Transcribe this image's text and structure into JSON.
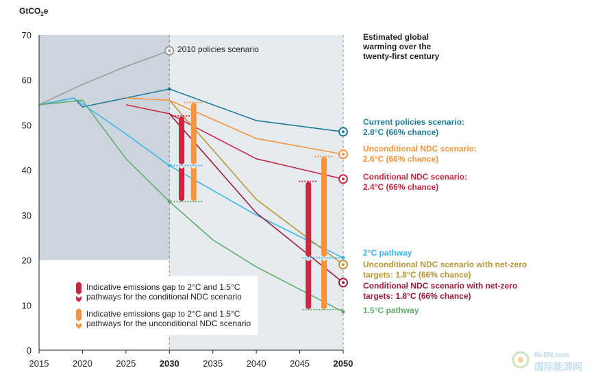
{
  "chart_data": {
    "type": "line",
    "ylabel": "GtCO₂e",
    "ylim": [
      0,
      70
    ],
    "yticks": [
      0,
      10,
      20,
      30,
      40,
      50,
      60,
      70
    ],
    "xticks": [
      {
        "value": 2015,
        "label": "2015",
        "bold": false
      },
      {
        "value": 2020,
        "label": "2020",
        "bold": false
      },
      {
        "value": 2025,
        "label": "2025",
        "bold": false
      },
      {
        "value": 2030,
        "label": "2030",
        "bold": true
      },
      {
        "value": 2035,
        "label": "2035",
        "bold": false
      },
      {
        "value": 2040,
        "label": "2040",
        "bold": false
      },
      {
        "value": 2045,
        "label": "2045",
        "bold": false
      },
      {
        "value": 2050,
        "label": "2050",
        "bold": true
      }
    ],
    "xlim": [
      2015,
      2050
    ],
    "side_title": [
      "Estimated global",
      "warming over the",
      "twenty-first century"
    ],
    "series": [
      {
        "key": "policies2010",
        "color": "#a09999",
        "points": [
          [
            2015,
            54.5
          ],
          [
            2020,
            59
          ],
          [
            2025,
            63
          ],
          [
            2030,
            66.5
          ]
        ],
        "end_marker": true
      },
      {
        "key": "current",
        "color": "#1e7b98",
        "points": [
          [
            2015,
            54.5
          ],
          [
            2019,
            56
          ],
          [
            2020,
            54
          ],
          [
            2025,
            56
          ],
          [
            2030,
            58
          ],
          [
            2040,
            51
          ],
          [
            2050,
            48.5
          ]
        ],
        "end_marker": true
      },
      {
        "key": "uncond_ndc",
        "color": "#f7943d",
        "points": [
          [
            2025,
            56
          ],
          [
            2030,
            55.5
          ],
          [
            2040,
            47
          ],
          [
            2050,
            43.5
          ]
        ],
        "end_marker": true
      },
      {
        "key": "cond_ndc",
        "color": "#c8273f",
        "points": [
          [
            2025,
            54.5
          ],
          [
            2030,
            52.5
          ],
          [
            2040,
            42.5
          ],
          [
            2050,
            38
          ]
        ],
        "end_marker": true
      },
      {
        "key": "two_deg",
        "color": "#39b7e9",
        "points": [
          [
            2015,
            54.5
          ],
          [
            2019,
            56
          ],
          [
            2025,
            48
          ],
          [
            2030,
            41
          ],
          [
            2040,
            30
          ],
          [
            2050,
            20.5
          ]
        ],
        "end_marker": false
      },
      {
        "key": "uncond_netzero",
        "color": "#b89537",
        "points": [
          [
            2030,
            55.5
          ],
          [
            2040,
            33.5
          ],
          [
            2050,
            19
          ]
        ],
        "end_marker": true
      },
      {
        "key": "cond_netzero",
        "color": "#9e1b3a",
        "points": [
          [
            2030,
            52.5
          ],
          [
            2040,
            30.5
          ],
          [
            2050,
            15
          ]
        ],
        "end_marker": true
      },
      {
        "key": "one_five",
        "color": "#62ab6d",
        "points": [
          [
            2015,
            54.5
          ],
          [
            2020,
            55.5
          ],
          [
            2025,
            42.5
          ],
          [
            2030,
            33
          ],
          [
            2035,
            24.5
          ],
          [
            2040,
            18.5
          ],
          [
            2050,
            8.5
          ]
        ],
        "end_marker": false
      }
    ],
    "labels": [
      {
        "key": "current",
        "color": "#1e7b98",
        "lines": [
          "Current policies scenario:",
          "2.8°C (66% chance)"
        ]
      },
      {
        "key": "uncond_ndc",
        "color": "#f7943d",
        "lines": [
          "Unconditional NDC scenario:",
          "2.6°C (66% chance)"
        ]
      },
      {
        "key": "cond_ndc",
        "color": "#c8273f",
        "lines": [
          "Conditional NDC scenario:",
          "2.4°C (66% chance)"
        ]
      },
      {
        "key": "two_deg",
        "color": "#39b7e9",
        "lines": [
          "2°C pathway"
        ]
      },
      {
        "key": "uncond_netzero",
        "color": "#b89537",
        "lines": [
          "Unconditional NDC scenario with net-zero",
          "targets: 1.8°C (66% chance)"
        ]
      },
      {
        "key": "cond_netzero",
        "color": "#9e1b3a",
        "lines": [
          "Conditional NDC scenario with net-zero",
          "targets: 1.8°C (66% chance)"
        ]
      },
      {
        "key": "one_five",
        "color": "#62ab6d",
        "lines": [
          "1.5°C pathway"
        ]
      }
    ],
    "annotation": "2010 policies scenario",
    "gap_bars": [
      {
        "type": "conditional",
        "color": "#c8273f",
        "x": 2031.4,
        "top": 52,
        "mid": 41,
        "bottom": 33
      },
      {
        "type": "unconditional",
        "color": "#f7943d",
        "x": 2032.8,
        "top": 55,
        "mid": 41,
        "bottom": 33
      },
      {
        "type": "conditional",
        "color": "#c8273f",
        "x": 2046.0,
        "top": 37.5,
        "mid": 20.5,
        "bottom": 9
      },
      {
        "type": "unconditional",
        "color": "#f7943d",
        "x": 2047.8,
        "top": 43,
        "mid": 20.5,
        "bottom": 9
      }
    ],
    "legend": [
      {
        "color": "#c8273f",
        "lines": [
          "Indicative emissions gap to 2°C and 1.5°C",
          "pathways for the conditional NDC scenario"
        ]
      },
      {
        "color": "#f7943d",
        "lines": [
          "Indicative emissions gap to 2°C and 1.5°C",
          "pathways for the unconditional NDC scenario"
        ]
      }
    ],
    "colors": {
      "historic_shade": "#ccd5de",
      "future_shade": "#e6ebf0",
      "axis": "#222222"
    }
  },
  "watermark": {
    "text": "IN-EN.com",
    "subtext": "国际能源网"
  }
}
